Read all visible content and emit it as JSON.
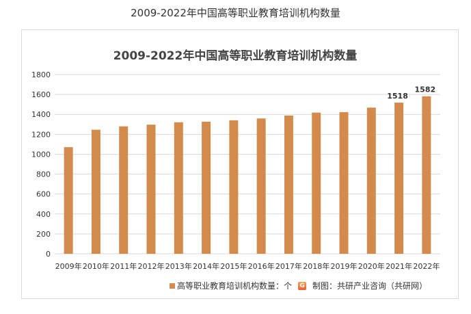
{
  "page_title": "2009-2022年中国高等职业教育培训机构数量",
  "chart_data": {
    "type": "bar",
    "title": "2009-2022年中国高等职业教育培训机构数量",
    "categories": [
      "2009年",
      "2010年",
      "2011年",
      "2012年",
      "2013年",
      "2014年",
      "2015年",
      "2016年",
      "2017年",
      "2018年",
      "2019年",
      "2020年",
      "2021年",
      "2022年"
    ],
    "values": [
      1071,
      1246,
      1280,
      1297,
      1321,
      1327,
      1341,
      1359,
      1388,
      1418,
      1423,
      1468,
      1518,
      1582
    ],
    "data_labels": {
      "12": "1518",
      "13": "1582"
    },
    "ylim": [
      0,
      1800
    ],
    "yticks": [
      "0",
      "200",
      "400",
      "600",
      "800",
      "1000",
      "1200",
      "1400",
      "1600",
      "1800"
    ],
    "xlabel": "",
    "ylabel": "",
    "grid": true,
    "color": "#d38b4d",
    "legend": {
      "label": "高等职业教育培训机构数量：个",
      "placement": "bottom"
    }
  },
  "source": "制图：共研产业咨询（共研网）",
  "logo_text": "G"
}
